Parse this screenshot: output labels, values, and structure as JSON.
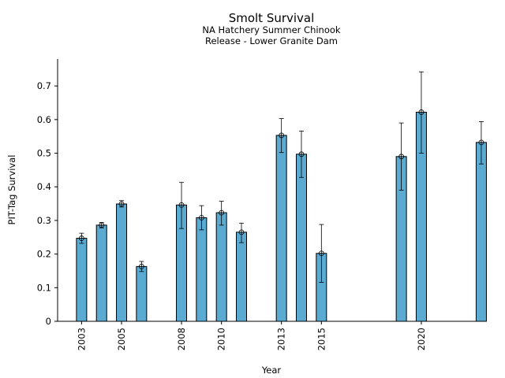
{
  "chart_data": {
    "type": "bar",
    "title": "Smolt Survival",
    "subtitle_lines": [
      "NA Hatchery Summer Chinook",
      "Release - Lower Granite Dam"
    ],
    "xlabel": "Year",
    "ylabel": "PIT-Tag Survival",
    "ylim": [
      0,
      0.78
    ],
    "xlim": [
      2001.8,
      2023.2
    ],
    "yticks": [
      0,
      0.1,
      0.2,
      0.3,
      0.4,
      0.5,
      0.6,
      0.7
    ],
    "ytick_labels": [
      "0",
      "0.1",
      "0.2",
      "0.3",
      "0.4",
      "0.5",
      "0.6",
      "0.7"
    ],
    "xticks": [
      2003,
      2005,
      2008,
      2010,
      2013,
      2015,
      2020
    ],
    "xtick_labels": [
      "2003",
      "2005",
      "2008",
      "2010",
      "2013",
      "2015",
      "2020"
    ],
    "bar_color": "#5aaad2",
    "grid": false,
    "bars": [
      {
        "year": 2003,
        "value": 0.247,
        "low": 0.232,
        "high": 0.262
      },
      {
        "year": 2004,
        "value": 0.286,
        "low": 0.278,
        "high": 0.294
      },
      {
        "year": 2005,
        "value": 0.349,
        "low": 0.34,
        "high": 0.359
      },
      {
        "year": 2006,
        "value": 0.163,
        "low": 0.148,
        "high": 0.178
      },
      {
        "year": 2008,
        "value": 0.346,
        "low": 0.276,
        "high": 0.413
      },
      {
        "year": 2009,
        "value": 0.308,
        "low": 0.272,
        "high": 0.344
      },
      {
        "year": 2010,
        "value": 0.323,
        "low": 0.286,
        "high": 0.357
      },
      {
        "year": 2011,
        "value": 0.265,
        "low": 0.234,
        "high": 0.292
      },
      {
        "year": 2013,
        "value": 0.553,
        "low": 0.502,
        "high": 0.603
      },
      {
        "year": 2014,
        "value": 0.497,
        "low": 0.428,
        "high": 0.566
      },
      {
        "year": 2015,
        "value": 0.202,
        "low": 0.116,
        "high": 0.288
      },
      {
        "year": 2019,
        "value": 0.49,
        "low": 0.39,
        "high": 0.59
      },
      {
        "year": 2020,
        "value": 0.622,
        "low": 0.5,
        "high": 0.742
      },
      {
        "year": 2023,
        "value": 0.532,
        "low": 0.468,
        "high": 0.594
      }
    ]
  }
}
